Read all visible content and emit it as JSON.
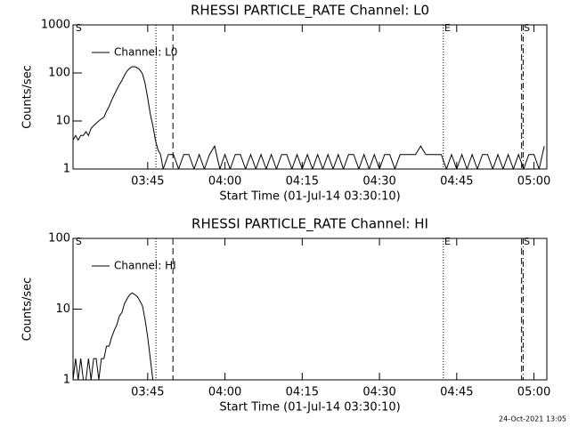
{
  "chart_data": [
    {
      "type": "line",
      "title": "RHESSI PARTICLE_RATE Channel: L0",
      "x_label": "Start Time (01-Jul-14 03:30:10)",
      "y_label": "Counts/sec",
      "log_scale": true,
      "xlim": [
        210.5,
        302.5
      ],
      "ylim": [
        1,
        1000
      ],
      "yticks": [
        1,
        10,
        100,
        1000
      ],
      "xticks": [
        {
          "value": 225,
          "label": "03:45"
        },
        {
          "value": 240,
          "label": "04:00"
        },
        {
          "value": 255,
          "label": "04:15"
        },
        {
          "value": 270,
          "label": "04:30"
        },
        {
          "value": 285,
          "label": "04:45"
        },
        {
          "value": 300,
          "label": "05:00"
        }
      ],
      "legend": "upper left",
      "series": [
        {
          "name": "Channel: L0",
          "color": "#000000",
          "x": [
            210.5,
            211,
            211.5,
            212,
            212.5,
            213,
            213.5,
            214,
            214.5,
            215,
            215.5,
            216,
            216.5,
            217,
            217.5,
            218,
            218.5,
            219,
            219.5,
            220,
            220.5,
            221,
            221.5,
            222,
            222.5,
            223,
            223.5,
            224,
            224.5,
            225,
            225.5,
            226,
            226.5,
            227,
            227.5,
            228,
            229,
            230,
            231,
            232,
            233,
            234,
            235,
            236,
            237,
            238,
            239,
            240,
            241,
            242,
            243,
            244,
            245,
            246,
            247,
            248,
            249,
            250,
            251,
            252,
            253,
            254,
            255,
            256,
            257,
            258,
            259,
            260,
            261,
            262,
            263,
            264,
            265,
            266,
            267,
            268,
            269,
            270,
            271,
            272,
            273,
            274,
            275,
            276,
            277,
            278,
            279,
            280,
            281,
            282,
            283,
            284,
            285,
            286,
            287,
            288,
            289,
            290,
            291,
            292,
            293,
            294,
            295,
            296,
            297,
            298,
            299,
            300,
            301,
            302
          ],
          "values": [
            4,
            5,
            4,
            5,
            5,
            6,
            5,
            7,
            8,
            9,
            10,
            11,
            12,
            16,
            20,
            27,
            35,
            45,
            57,
            70,
            90,
            110,
            125,
            135,
            135,
            128,
            115,
            95,
            60,
            30,
            14,
            8,
            4,
            2.5,
            2,
            1,
            2,
            2,
            1,
            2,
            2,
            1,
            2,
            1,
            2,
            3,
            1,
            2,
            1,
            2,
            2,
            1,
            2,
            1,
            2,
            1,
            2,
            1,
            2,
            2,
            1,
            2,
            1,
            2,
            1,
            2,
            1,
            2,
            1,
            2,
            1,
            2,
            2,
            1,
            2,
            1,
            2,
            1,
            2,
            2,
            1,
            2,
            2,
            2,
            2,
            3,
            2,
            2,
            2,
            2,
            1,
            2,
            1,
            2,
            1,
            2,
            1,
            2,
            2,
            1,
            2,
            1,
            2,
            1,
            2,
            1,
            2,
            2,
            1,
            3
          ]
        }
      ],
      "vlines": [
        {
          "x": 226.6,
          "style": "dotted"
        },
        {
          "x": 229.9,
          "style": "dashed"
        },
        {
          "x": 282.4,
          "style": "dotted"
        },
        {
          "x": 297.6,
          "style": "dashed"
        },
        {
          "x": 297.9,
          "style": "dashdot"
        }
      ],
      "annotations": [
        {
          "x": 211,
          "text": "S"
        },
        {
          "x": 282.6,
          "text": "E"
        },
        {
          "x": 298,
          "text": "S"
        }
      ]
    },
    {
      "type": "line",
      "title": "RHESSI PARTICLE_RATE Channel: HI",
      "x_label": "Start Time (01-Jul-14 03:30:10)",
      "y_label": "Counts/sec",
      "log_scale": true,
      "xlim": [
        210.5,
        302.5
      ],
      "ylim": [
        1,
        100
      ],
      "yticks": [
        1,
        10,
        100
      ],
      "xticks": [
        {
          "value": 225,
          "label": "03:45"
        },
        {
          "value": 240,
          "label": "04:00"
        },
        {
          "value": 255,
          "label": "04:15"
        },
        {
          "value": 270,
          "label": "04:30"
        },
        {
          "value": 285,
          "label": "04:45"
        },
        {
          "value": 300,
          "label": "05:00"
        }
      ],
      "legend": "upper left",
      "series": [
        {
          "name": "Channel: HI",
          "color": "#000000",
          "x": [
            210.5,
            211,
            211.5,
            212,
            212.5,
            213,
            213.5,
            214,
            214.5,
            215,
            215.5,
            216,
            216.5,
            217,
            217.5,
            218,
            218.5,
            219,
            219.5,
            220,
            220.5,
            221,
            221.5,
            222,
            222.5,
            223,
            223.5,
            224,
            224.5,
            225,
            225.5,
            226
          ],
          "values": [
            1,
            2,
            1,
            2,
            1,
            1,
            2,
            1,
            2,
            2,
            1,
            2,
            2,
            3,
            3,
            4,
            5,
            6,
            8,
            9,
            12,
            14,
            16,
            17,
            16,
            15,
            13,
            11,
            7,
            4,
            2,
            1
          ]
        }
      ],
      "vlines": [
        {
          "x": 226.6,
          "style": "dotted"
        },
        {
          "x": 229.9,
          "style": "dashed"
        },
        {
          "x": 282.4,
          "style": "dotted"
        },
        {
          "x": 297.6,
          "style": "dashed"
        },
        {
          "x": 297.9,
          "style": "dashdot"
        }
      ],
      "annotations": [
        {
          "x": 211,
          "text": "S"
        },
        {
          "x": 282.6,
          "text": "E"
        },
        {
          "x": 298,
          "text": "S"
        }
      ]
    }
  ],
  "footer": "24-Oct-2021 13:05"
}
